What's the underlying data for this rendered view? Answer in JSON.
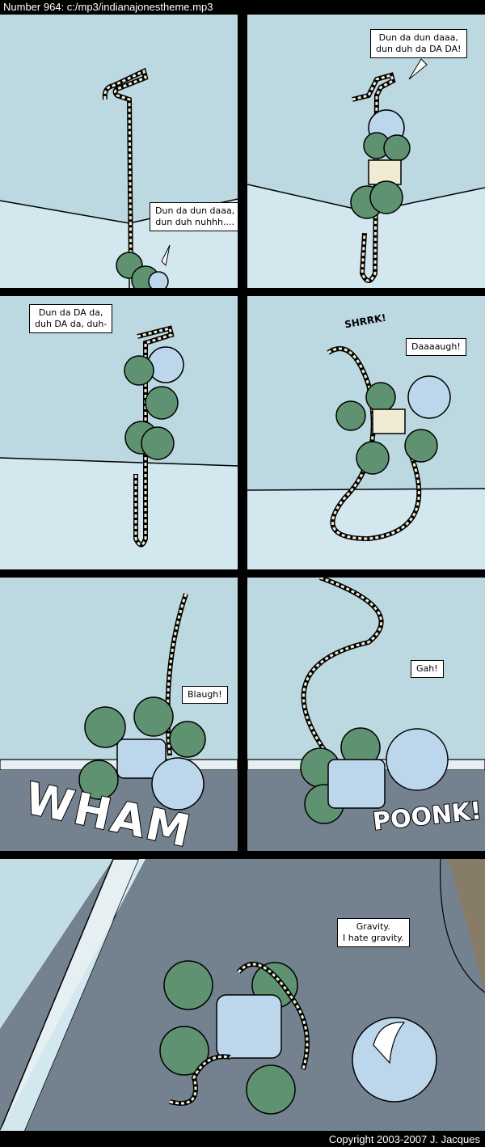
{
  "header": {
    "title": "Number 964: c:/mp3/indianajonestheme.mp3"
  },
  "footer": {
    "copyright": "Copyright 2003-2007 J. Jacques"
  },
  "panels": [
    {
      "speech": "Dun da dun daaa,\ndun duh nuhhh...."
    },
    {
      "speech": "Dun da dun daaa,\ndun duh da DA DA!"
    },
    {
      "speech": "Dun da DA da,\nduh DA da, duh-"
    },
    {
      "speech": "Daaaaugh!",
      "sfx": "SHRRK!"
    },
    {
      "speech": "Blaugh!",
      "sfx": "WHAM"
    },
    {
      "speech": "Gah!",
      "sfx": "POONK!"
    },
    {
      "speech": "Gravity.\nI hate gravity."
    }
  ],
  "colors": {
    "wall": "#c3dde6",
    "ceiling": "#b2d0db",
    "floor": "#74828f",
    "balloon": "#5e9270",
    "rope": "#f0ebd2",
    "robot": "#bcd6ec"
  }
}
